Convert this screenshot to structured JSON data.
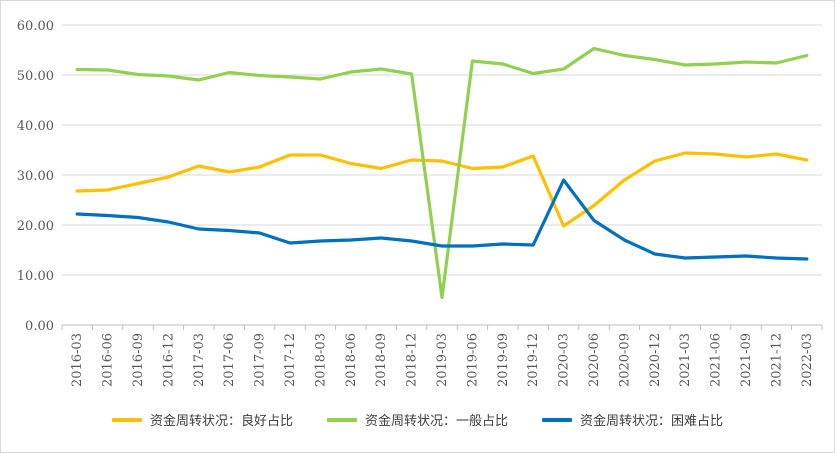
{
  "chart_data": {
    "type": "line",
    "title": "",
    "xlabel": "",
    "ylabel": "",
    "ylim": [
      0,
      60
    ],
    "yticks": [
      "0.00",
      "10.00",
      "20.00",
      "30.00",
      "40.00",
      "50.00",
      "60.00"
    ],
    "grid": "horizontal",
    "legend_position": "bottom",
    "x": [
      "2016-03",
      "2016-06",
      "2016-09",
      "2016-12",
      "2017-03",
      "2017-06",
      "2017-09",
      "2017-12",
      "2018-03",
      "2018-06",
      "2018-09",
      "2018-12",
      "2019-03",
      "2019-06",
      "2019-09",
      "2019-12",
      "2020-03",
      "2020-06",
      "2020-09",
      "2020-12",
      "2021-03",
      "2021-06",
      "2021-09",
      "2021-12",
      "2022-03"
    ],
    "series": [
      {
        "name": "资金周转状况：良好占比",
        "color": "#ffc000",
        "values": [
          26.8,
          27.0,
          28.3,
          29.6,
          31.8,
          30.6,
          31.6,
          34.0,
          34.0,
          32.3,
          31.3,
          33.0,
          32.8,
          31.3,
          31.6,
          33.8,
          19.8,
          23.9,
          29.0,
          32.8,
          34.4,
          34.2,
          33.6,
          34.2,
          33.0
        ]
      },
      {
        "name": "资金周转状况：一般占比",
        "color": "#92d050",
        "values": [
          51.1,
          51.0,
          50.1,
          49.8,
          49.0,
          50.5,
          49.9,
          49.6,
          49.2,
          50.6,
          51.2,
          50.2,
          5.5,
          52.8,
          52.2,
          50.3,
          51.2,
          55.3,
          53.9,
          53.1,
          52.0,
          52.2,
          52.6,
          52.4,
          53.9
        ]
      },
      {
        "name": "资金周转状况：困难占比",
        "color": "#0070c0",
        "values": [
          22.2,
          21.9,
          21.5,
          20.6,
          19.2,
          18.9,
          18.4,
          16.4,
          16.8,
          17.0,
          17.4,
          16.8,
          15.8,
          15.8,
          16.2,
          16.0,
          29.0,
          20.9,
          17.0,
          14.2,
          13.4,
          13.6,
          13.8,
          13.4,
          13.2
        ]
      }
    ]
  }
}
